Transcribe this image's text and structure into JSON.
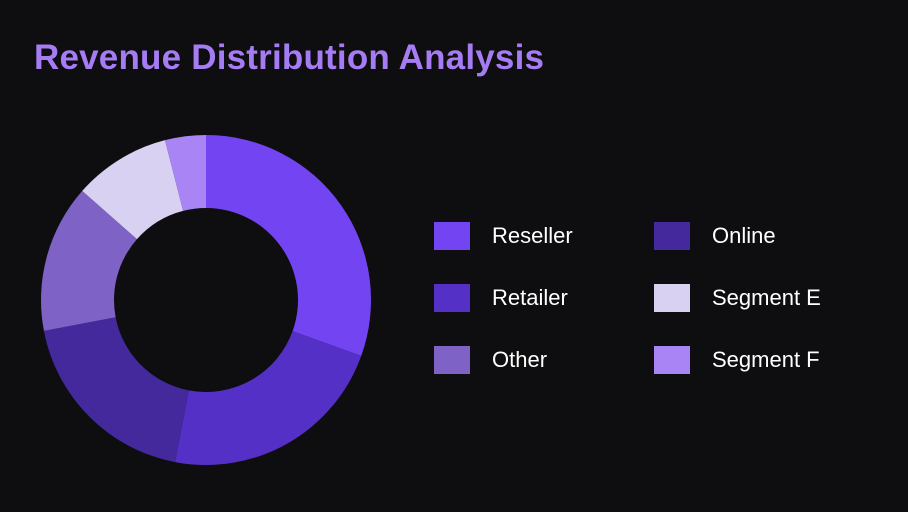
{
  "title": "Revenue Distribution Analysis",
  "colors": {
    "background": "#0e0d0f",
    "title": "#a57cf4",
    "legend_text": "#ffffff"
  },
  "chart_data": {
    "type": "pie",
    "variant": "donut",
    "title": "Revenue Distribution Analysis",
    "legend_position": "right",
    "slices": [
      {
        "label": "Reseller",
        "value": 30.5,
        "color": "#7345f2"
      },
      {
        "label": "Retailer",
        "value": 22.5,
        "color": "#5530c6"
      },
      {
        "label": "Online",
        "value": 19.0,
        "color": "#43299c"
      },
      {
        "label": "Other",
        "value": 14.5,
        "color": "#7f62c6"
      },
      {
        "label": "Segment E",
        "value": 9.5,
        "color": "#d8d1f1"
      },
      {
        "label": "Segment F",
        "value": 4.0,
        "color": "#a984f5"
      }
    ],
    "legend_order": [
      "Reseller",
      "Online",
      "Retailer",
      "Segment E",
      "Other",
      "Segment F"
    ]
  }
}
